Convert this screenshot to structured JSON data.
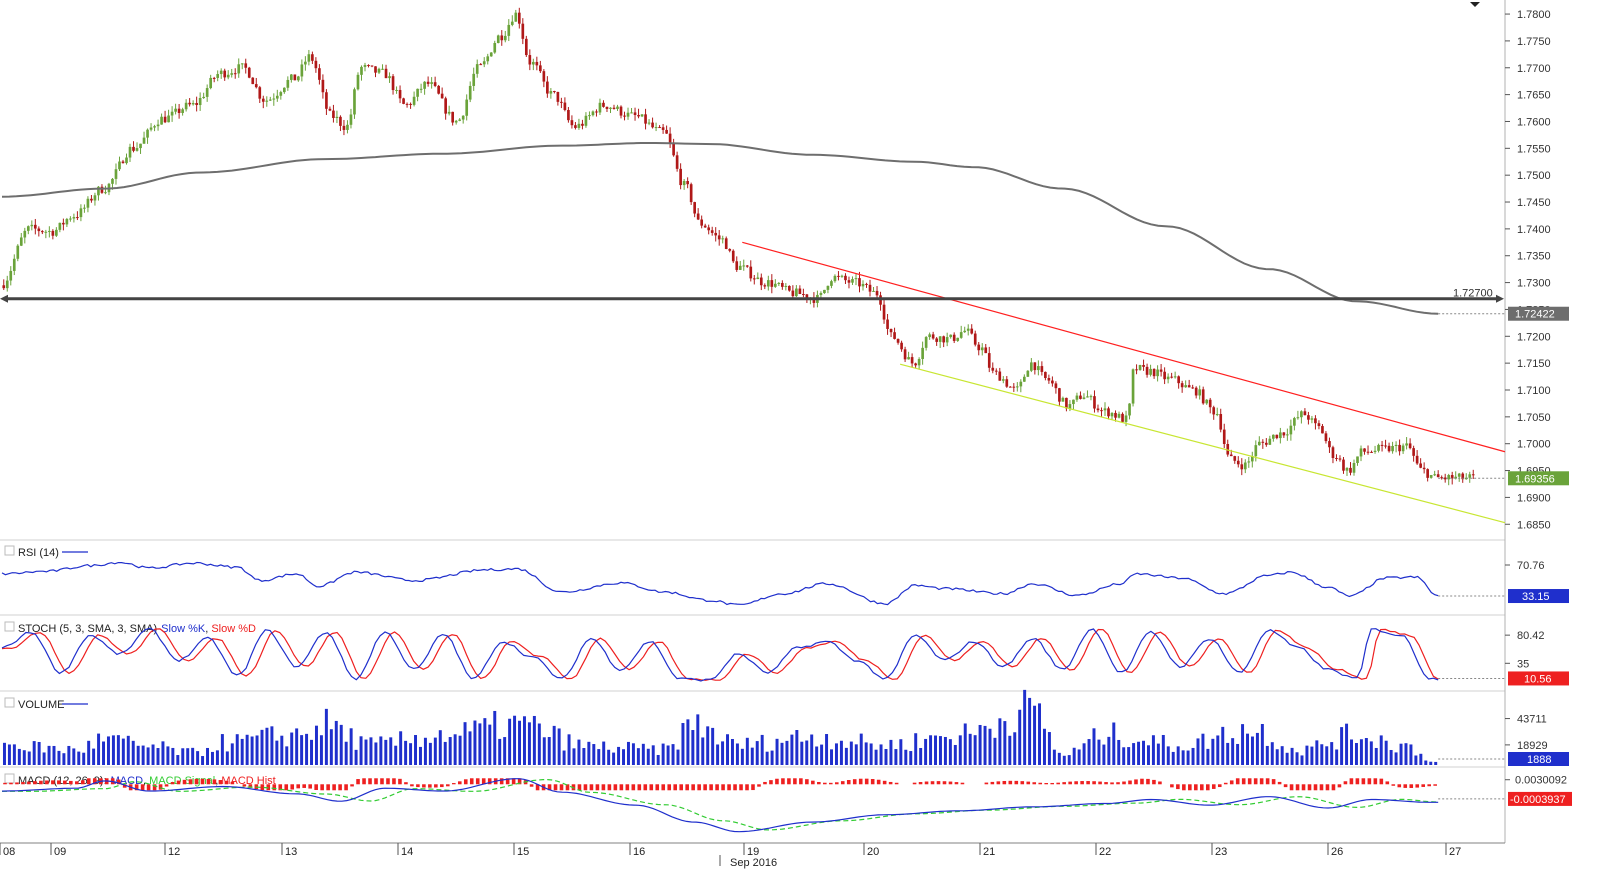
{
  "chart_data": {
    "type": "candlestick",
    "instrument_note": "",
    "x_axis": {
      "month_label": "Sep 2016",
      "day_labels": [
        "08",
        "09",
        "12",
        "13",
        "14",
        "15",
        "16",
        "19",
        "20",
        "21",
        "22",
        "23",
        "26",
        "27"
      ]
    },
    "price_pane": {
      "y_ticks": [
        "1.7800",
        "1.7750",
        "1.7700",
        "1.7650",
        "1.7600",
        "1.7550",
        "1.7500",
        "1.7450",
        "1.7400",
        "1.7350",
        "1.7300",
        "1.7250",
        "1.7200",
        "1.7150",
        "1.7100",
        "1.7050",
        "1.7000",
        "1.6950",
        "1.6900",
        "1.6850"
      ],
      "ylim": [
        1.683,
        1.7815
      ],
      "horizontal_line": {
        "value": 1.727,
        "label": "1.72700",
        "color": "#444444"
      },
      "moving_average_badge": {
        "value": "1.72422",
        "color": "#6d6d6d"
      },
      "last_price_badge": {
        "value": "1.69356",
        "color": "#6aa33a"
      },
      "upper_trendline": {
        "color": "#ff2020",
        "from": [
          0.36,
          1.7375
        ],
        "to": [
          1.0,
          1.6985
        ]
      },
      "lower_trendline": {
        "color": "#c8e632",
        "from": [
          0.44,
          1.7148
        ],
        "to": [
          1.0,
          1.6853
        ]
      },
      "bull_color": "#6aa33a",
      "bear_color": "#b01818",
      "moving_average_color": "#6e6e6e",
      "keypoints": [
        [
          0.0,
          1.7295
        ],
        [
          0.02,
          1.74
        ],
        [
          0.035,
          1.7395
        ],
        [
          0.05,
          1.7425
        ],
        [
          0.07,
          1.7475
        ],
        [
          0.09,
          1.755
        ],
        [
          0.11,
          1.7605
        ],
        [
          0.13,
          1.763
        ],
        [
          0.15,
          1.769
        ],
        [
          0.165,
          1.77
        ],
        [
          0.18,
          1.764
        ],
        [
          0.2,
          1.768
        ],
        [
          0.21,
          1.772
        ],
        [
          0.225,
          1.761
        ],
        [
          0.235,
          1.759
        ],
        [
          0.245,
          1.77
        ],
        [
          0.26,
          1.769
        ],
        [
          0.275,
          1.763
        ],
        [
          0.29,
          1.767
        ],
        [
          0.31,
          1.76
        ],
        [
          0.325,
          1.77
        ],
        [
          0.34,
          1.776
        ],
        [
          0.35,
          1.78
        ],
        [
          0.36,
          1.771
        ],
        [
          0.375,
          1.765
        ],
        [
          0.39,
          1.759
        ],
        [
          0.41,
          1.763
        ],
        [
          0.43,
          1.761
        ],
        [
          0.45,
          1.758
        ],
        [
          0.465,
          1.748
        ],
        [
          0.475,
          1.741
        ],
        [
          0.49,
          1.738
        ],
        [
          0.5,
          1.733
        ],
        [
          0.52,
          1.73
        ],
        [
          0.54,
          1.728
        ],
        [
          0.555,
          1.727
        ],
        [
          0.565,
          1.731
        ],
        [
          0.58,
          1.73
        ],
        [
          0.595,
          1.728
        ],
        [
          0.605,
          1.72
        ],
        [
          0.62,
          1.715
        ],
        [
          0.63,
          1.72
        ],
        [
          0.645,
          1.7195
        ],
        [
          0.655,
          1.721
        ],
        [
          0.665,
          1.718
        ],
        [
          0.675,
          1.713
        ],
        [
          0.69,
          1.71
        ],
        [
          0.7,
          1.715
        ],
        [
          0.71,
          1.712
        ],
        [
          0.725,
          1.707
        ],
        [
          0.735,
          1.709
        ],
        [
          0.75,
          1.706
        ],
        [
          0.765,
          1.7045
        ],
        [
          0.77,
          1.714
        ],
        [
          0.78,
          1.7135
        ],
        [
          0.795,
          1.712
        ],
        [
          0.81,
          1.71
        ],
        [
          0.825,
          1.706
        ],
        [
          0.835,
          1.697
        ],
        [
          0.845,
          1.696
        ],
        [
          0.855,
          1.7
        ],
        [
          0.87,
          1.702
        ],
        [
          0.885,
          1.7055
        ],
        [
          0.895,
          1.703
        ],
        [
          0.905,
          1.698
        ],
        [
          0.915,
          1.695
        ],
        [
          0.925,
          1.6985
        ],
        [
          0.94,
          1.699
        ],
        [
          0.955,
          1.6995
        ],
        [
          0.965,
          1.695
        ],
        [
          0.975,
          1.6936
        ]
      ]
    },
    "rsi_pane": {
      "title": "RSI (14)",
      "line_color": "#1f2fcc",
      "y_ticks": [
        "70.76"
      ],
      "current_badge": {
        "value": "33.15",
        "color": "#1f2fcc"
      },
      "ylim": [
        15,
        95
      ],
      "keypoints": [
        [
          0.0,
          60
        ],
        [
          0.03,
          63
        ],
        [
          0.06,
          70
        ],
        [
          0.08,
          74
        ],
        [
          0.1,
          67
        ],
        [
          0.13,
          73
        ],
        [
          0.16,
          68
        ],
        [
          0.175,
          52
        ],
        [
          0.2,
          60
        ],
        [
          0.215,
          45
        ],
        [
          0.24,
          62
        ],
        [
          0.28,
          52
        ],
        [
          0.33,
          65
        ],
        [
          0.35,
          66
        ],
        [
          0.38,
          38
        ],
        [
          0.42,
          49
        ],
        [
          0.45,
          38
        ],
        [
          0.48,
          28
        ],
        [
          0.5,
          22
        ],
        [
          0.53,
          36
        ],
        [
          0.56,
          48
        ],
        [
          0.6,
          24
        ],
        [
          0.62,
          46
        ],
        [
          0.64,
          42
        ],
        [
          0.68,
          36
        ],
        [
          0.7,
          48
        ],
        [
          0.73,
          34
        ],
        [
          0.76,
          48
        ],
        [
          0.77,
          60
        ],
        [
          0.8,
          55
        ],
        [
          0.83,
          36
        ],
        [
          0.86,
          58
        ],
        [
          0.875,
          62
        ],
        [
          0.9,
          44
        ],
        [
          0.915,
          33
        ],
        [
          0.94,
          55
        ],
        [
          0.96,
          56
        ],
        [
          0.975,
          33
        ]
      ]
    },
    "stoch_pane": {
      "title_prefix": "STOCH (5, 3, SMA, 3, SMA)",
      "series": [
        {
          "name": "Slow %K",
          "color": "#1f2fcc"
        },
        {
          "name": "Slow %D",
          "color": "#ee2020"
        }
      ],
      "y_ticks": [
        "80.42",
        "35"
      ],
      "current_badge": {
        "value": "10.56",
        "color": "#ee2020"
      },
      "ylim": [
        0,
        100
      ],
      "keypoints": [
        [
          0.0,
          60
        ],
        [
          0.02,
          85
        ],
        [
          0.04,
          20
        ],
        [
          0.06,
          80
        ],
        [
          0.08,
          50
        ],
        [
          0.1,
          90
        ],
        [
          0.12,
          40
        ],
        [
          0.14,
          75
        ],
        [
          0.16,
          15
        ],
        [
          0.18,
          88
        ],
        [
          0.2,
          30
        ],
        [
          0.22,
          85
        ],
        [
          0.24,
          10
        ],
        [
          0.26,
          85
        ],
        [
          0.28,
          25
        ],
        [
          0.3,
          82
        ],
        [
          0.32,
          10
        ],
        [
          0.34,
          70
        ],
        [
          0.36,
          45
        ],
        [
          0.38,
          10
        ],
        [
          0.4,
          75
        ],
        [
          0.42,
          25
        ],
        [
          0.44,
          70
        ],
        [
          0.46,
          10
        ],
        [
          0.48,
          8
        ],
        [
          0.5,
          50
        ],
        [
          0.52,
          20
        ],
        [
          0.54,
          60
        ],
        [
          0.56,
          70
        ],
        [
          0.58,
          40
        ],
        [
          0.6,
          10
        ],
        [
          0.62,
          80
        ],
        [
          0.64,
          40
        ],
        [
          0.66,
          70
        ],
        [
          0.68,
          30
        ],
        [
          0.7,
          75
        ],
        [
          0.72,
          25
        ],
        [
          0.74,
          90
        ],
        [
          0.76,
          20
        ],
        [
          0.78,
          85
        ],
        [
          0.8,
          30
        ],
        [
          0.82,
          75
        ],
        [
          0.84,
          20
        ],
        [
          0.86,
          88
        ],
        [
          0.88,
          60
        ],
        [
          0.9,
          25
        ],
        [
          0.92,
          10
        ],
        [
          0.93,
          90
        ],
        [
          0.95,
          80
        ],
        [
          0.97,
          10
        ]
      ]
    },
    "volume_pane": {
      "title": "VOLUME",
      "bar_color": "#1f2fcc",
      "y_ticks": [
        "43711",
        "18929"
      ],
      "current_badge": {
        "value": "1888",
        "color": "#1f2fcc"
      },
      "ylim": [
        0,
        64000
      ],
      "keypoints": [
        [
          0.0,
          20000
        ],
        [
          0.05,
          15000
        ],
        [
          0.07,
          25000
        ],
        [
          0.1,
          18000
        ],
        [
          0.13,
          12000
        ],
        [
          0.15,
          22000
        ],
        [
          0.2,
          30000
        ],
        [
          0.22,
          40000
        ],
        [
          0.25,
          20000
        ],
        [
          0.3,
          30000
        ],
        [
          0.35,
          40000
        ],
        [
          0.4,
          18000
        ],
        [
          0.45,
          15000
        ],
        [
          0.47,
          40000
        ],
        [
          0.5,
          20000
        ],
        [
          0.55,
          28000
        ],
        [
          0.6,
          20000
        ],
        [
          0.65,
          30000
        ],
        [
          0.7,
          55000
        ],
        [
          0.72,
          10000
        ],
        [
          0.75,
          30000
        ],
        [
          0.8,
          20000
        ],
        [
          0.85,
          35000
        ],
        [
          0.88,
          15000
        ],
        [
          0.92,
          30000
        ],
        [
          0.95,
          20000
        ],
        [
          0.975,
          1888
        ]
      ]
    },
    "macd_pane": {
      "title_prefix": "MACD (12, 26, 9):",
      "series": [
        {
          "name": "MACD",
          "color": "#1f2fcc"
        },
        {
          "name": "MACD Signal",
          "color": "#33cc33"
        },
        {
          "name": "MACD Hist",
          "color": "#ee2020"
        }
      ],
      "y_ticks": [
        "0.0030092"
      ],
      "current_badge": {
        "value": "-0.0003937",
        "color": "#ee2020"
      },
      "ylim": [
        -0.0075,
        0.0042
      ],
      "keypoints": [
        [
          0.0,
          0.001
        ],
        [
          0.05,
          0.0015
        ],
        [
          0.07,
          0.0028
        ],
        [
          0.1,
          0.001
        ],
        [
          0.15,
          0.0018
        ],
        [
          0.2,
          0.0005
        ],
        [
          0.23,
          -0.0008
        ],
        [
          0.26,
          0.0015
        ],
        [
          0.3,
          0.001
        ],
        [
          0.35,
          0.0032
        ],
        [
          0.38,
          0.0008
        ],
        [
          0.43,
          -0.0015
        ],
        [
          0.47,
          -0.0045
        ],
        [
          0.5,
          -0.0062
        ],
        [
          0.55,
          -0.0045
        ],
        [
          0.6,
          -0.0032
        ],
        [
          0.65,
          -0.0025
        ],
        [
          0.7,
          -0.0018
        ],
        [
          0.75,
          -0.0012
        ],
        [
          0.78,
          -0.0005
        ],
        [
          0.82,
          -0.0015
        ],
        [
          0.86,
          0.0
        ],
        [
          0.9,
          -0.002
        ],
        [
          0.93,
          -0.0005
        ],
        [
          0.97,
          -0.001
        ]
      ]
    }
  }
}
